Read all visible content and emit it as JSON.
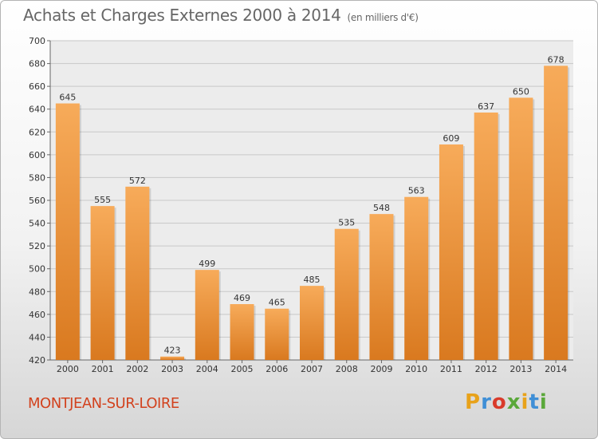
{
  "title": "Achats et Charges Externes 2000 à 2014",
  "subtitle": "(en milliers d'€)",
  "commune": "MONTJEAN-SUR-LOIRE",
  "logo": {
    "letters": [
      "P",
      "r",
      "o",
      "x",
      "i",
      "t",
      "i"
    ],
    "colors": [
      "#e8a21a",
      "#3f8fd6",
      "#d93b2b",
      "#5aa83a",
      "#e8a21a",
      "#3f8fd6",
      "#5aa83a"
    ]
  },
  "colors": {
    "bar_light": "#f7ab5a",
    "bar_dark": "#d9791f",
    "grid": "#c8c8c8",
    "title": "#666666",
    "commune": "#d2421e"
  },
  "chart_data": {
    "type": "bar",
    "categories": [
      "2000",
      "2001",
      "2002",
      "2003",
      "2004",
      "2005",
      "2006",
      "2007",
      "2008",
      "2009",
      "2010",
      "2011",
      "2012",
      "2013",
      "2014"
    ],
    "values": [
      645,
      555,
      572,
      423,
      499,
      469,
      465,
      485,
      535,
      548,
      563,
      609,
      637,
      650,
      678
    ],
    "ylim": [
      420,
      700
    ],
    "yticks": [
      420,
      440,
      460,
      480,
      500,
      520,
      540,
      560,
      580,
      600,
      620,
      640,
      660,
      680,
      700
    ],
    "grid": true,
    "data_labels": true
  }
}
